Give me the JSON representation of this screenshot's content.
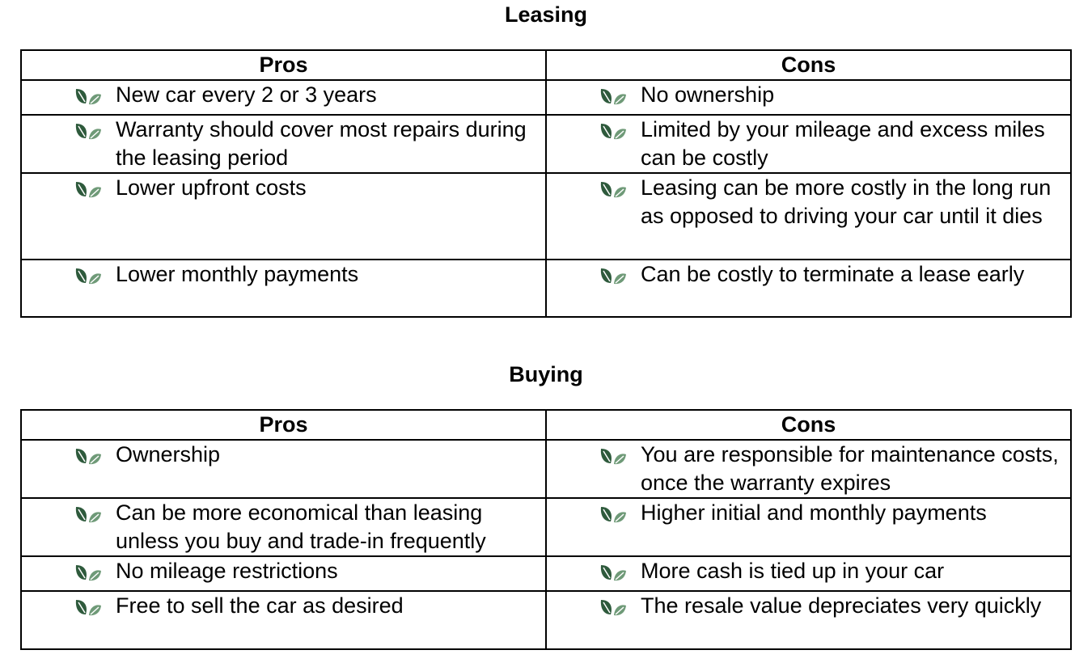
{
  "sections": [
    {
      "title": "Leasing",
      "headers": [
        "Pros",
        "Cons"
      ],
      "rows": [
        [
          "New car every 2 or 3 years",
          "No ownership"
        ],
        [
          "Warranty should cover most repairs during the leasing period",
          "Limited by your mileage and excess miles can be costly"
        ],
        [
          "Lower upfront costs",
          "Leasing can be more costly in the long run as opposed to driving your car until it dies"
        ],
        [
          "Lower monthly payments",
          "Can be costly to terminate a lease early"
        ]
      ]
    },
    {
      "title": "Buying",
      "headers": [
        "Pros",
        "Cons"
      ],
      "rows": [
        [
          "Ownership",
          "You are responsible for maintenance costs, once the warranty expires"
        ],
        [
          "Can be more economical than leasing unless you buy and trade-in frequently",
          "Higher initial and monthly payments"
        ],
        [
          "No mileage restrictions",
          "More cash is tied up in your car"
        ],
        [
          "Free to sell the car as desired",
          "The resale value depreciates very quickly"
        ]
      ]
    }
  ],
  "icon": "leaf-bullet-icon",
  "colors": {
    "leaf_dark": "#2e5a3c",
    "leaf_light": "#6f9a78"
  }
}
